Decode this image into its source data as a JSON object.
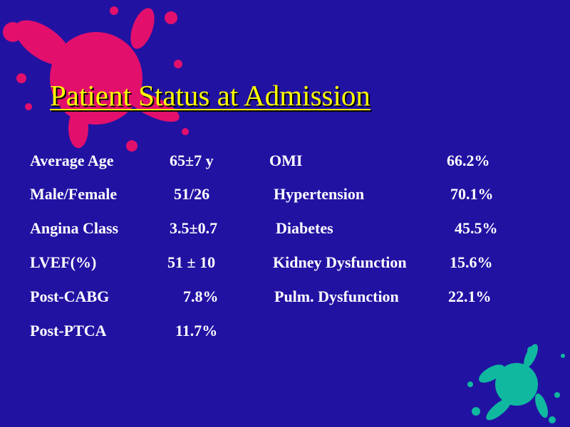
{
  "title": "Patient Status at Admission",
  "left": [
    {
      "label": "Average Age",
      "value": "65±7 y"
    },
    {
      "label": "Male/Female",
      "value": "51/26"
    },
    {
      "label": "Angina Class",
      "value": "3.5±0.7"
    },
    {
      "label": "LVEF(%)",
      "value": "51 ± 10"
    },
    {
      "label": "Post-CABG",
      "value": "7.8%"
    },
    {
      "label": "Post-PTCA",
      "value": "11.7%"
    }
  ],
  "right": [
    {
      "label": "OMI",
      "value": "66.2%"
    },
    {
      "label": "Hypertension",
      "value": "70.1%"
    },
    {
      "label": "Diabetes",
      "value": "45.5%"
    },
    {
      "label": "Kidney Dysfunction",
      "value": "15.6%"
    },
    {
      "label": "Pulm. Dysfunction",
      "value": "22.1%"
    }
  ]
}
